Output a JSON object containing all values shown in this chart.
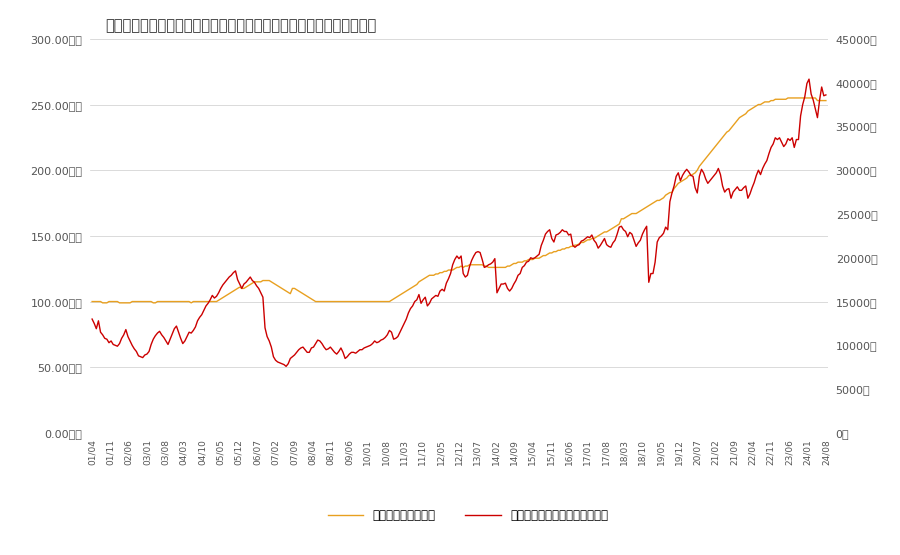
{
  "title": "首都圏中古マンションの成約坪単価と日経平均株価（月末値）の推移",
  "line1_label": "成約坪単価（万円）",
  "line2_label": "日経平均株価（月末値）（円）",
  "line1_color": "#E8A020",
  "line2_color": "#CC0000",
  "bg_color": "#FFFFFF",
  "left_ylim": [
    0,
    300
  ],
  "right_ylim": [
    0,
    45000
  ],
  "left_yticks": [
    0,
    50,
    100,
    150,
    200,
    250,
    300
  ],
  "right_yticks": [
    0,
    5000,
    10000,
    15000,
    20000,
    25000,
    30000,
    35000,
    40000,
    45000
  ],
  "left_yticklabels": [
    "0.00万円",
    "50.00万円",
    "100.00万円",
    "150.00万円",
    "200.00万円",
    "250.00万円",
    "300.00万円"
  ],
  "right_yticklabels": [
    "0円",
    "5000円",
    "10000円",
    "15000円",
    "20000円",
    "25000円",
    "30000円",
    "35000円",
    "40000円",
    "45000円"
  ],
  "xtick_labels": [
    "01/04",
    "01/11",
    "02/06",
    "03/01",
    "03/08",
    "04/03",
    "04/10",
    "05/05",
    "05/12",
    "06/07",
    "07/02",
    "07/09",
    "08/04",
    "08/11",
    "09/06",
    "10/01",
    "10/08",
    "11/03",
    "11/10",
    "12/05",
    "12/12",
    "13/07",
    "14/02",
    "14/09",
    "15/04",
    "15/11",
    "16/06",
    "17/01",
    "17/08",
    "18/03",
    "18/10",
    "19/05",
    "19/12",
    "20/07",
    "21/02",
    "21/09",
    "22/04",
    "22/11",
    "23/06",
    "24/01",
    "24/08"
  ],
  "nikkei_monthly": [
    13000,
    12500,
    11900,
    12800,
    11500,
    11200,
    10800,
    10700,
    10300,
    10500,
    10100,
    10000,
    9900,
    10200,
    10800,
    11200,
    11800,
    11000,
    10500,
    10000,
    9600,
    9300,
    8800,
    8700,
    8600,
    8900,
    9000,
    9300,
    10100,
    10700,
    11100,
    11400,
    11600,
    11200,
    10900,
    10500,
    10100,
    10700,
    11300,
    11900,
    12200,
    11500,
    10800,
    10200,
    10500,
    11000,
    11500,
    11400,
    11700,
    12100,
    12800,
    13200,
    13500,
    14000,
    14500,
    14800,
    15200,
    15700,
    15400,
    15600,
    16000,
    16500,
    16900,
    17200,
    17500,
    17800,
    18000,
    18300,
    18500,
    17500,
    17000,
    16500,
    17000,
    17200,
    17500,
    17800,
    17400,
    17200,
    16800,
    16500,
    16000,
    15500,
    12000,
    11000,
    10500,
    9800,
    8700,
    8300,
    8100,
    8000,
    7900,
    7800,
    7600,
    7900,
    8500,
    8700,
    8900,
    9200,
    9500,
    9700,
    9800,
    9500,
    9200,
    9200,
    9700,
    9800,
    10200,
    10600,
    10500,
    10200,
    9800,
    9500,
    9600,
    9800,
    9500,
    9200,
    9000,
    9300,
    9700,
    9200,
    8500,
    8700,
    9000,
    9200,
    9200,
    9100,
    9300,
    9500,
    9500,
    9700,
    9800,
    9900,
    10000,
    10200,
    10500,
    10300,
    10400,
    10600,
    10700,
    10900,
    11200,
    11700,
    11500,
    10700,
    10800,
    11000,
    11500,
    12000,
    12500,
    13000,
    13700,
    14200,
    14500,
    15000,
    15200,
    15800,
    14800,
    15200,
    15500,
    14500,
    14800,
    15300,
    15500,
    15700,
    15600,
    16200,
    16400,
    16200,
    17100,
    17600,
    18200,
    19200,
    19800,
    20200,
    19900,
    20200,
    18200,
    17800,
    18000,
    19000,
    19700,
    20200,
    20600,
    20700,
    20600,
    19800,
    18900,
    19000,
    19200,
    19300,
    19500,
    19900,
    16000,
    16500,
    17000,
    17000,
    17100,
    16500,
    16200,
    16500,
    17000,
    17400,
    18000,
    18200,
    18900,
    19100,
    19500,
    19600,
    20000,
    19900,
    20000,
    20200,
    20400,
    21400,
    22000,
    22700,
    23000,
    23200,
    22200,
    21800,
    22600,
    22700,
    22900,
    23200,
    23000,
    23000,
    22600,
    22700,
    21400,
    21200,
    21400,
    21500,
    21900,
    22000,
    22200,
    22400,
    22300,
    22600,
    22000,
    21700,
    21100,
    21400,
    21800,
    22200,
    21500,
    21300,
    21200,
    21700,
    22000,
    22700,
    23500,
    23600,
    23200,
    23000,
    22400,
    22900,
    22700,
    22000,
    21300,
    21700,
    22000,
    22700,
    23200,
    23600,
    17200,
    18200,
    18200,
    19500,
    21800,
    22300,
    22500,
    22800,
    23500,
    23200,
    26400,
    27400,
    28200,
    29300,
    29700,
    28800,
    29400,
    29800,
    30100,
    29800,
    29400,
    29300,
    28000,
    27400,
    29300,
    30100,
    29700,
    29000,
    28500,
    28800,
    29100,
    29400,
    29700,
    30200,
    29500,
    28200,
    27500,
    27800,
    27900,
    26800,
    27500,
    27800,
    28100,
    27700,
    27700,
    28000,
    28200,
    26800,
    27300,
    28000,
    28600,
    29400,
    30000,
    29500,
    30200,
    30700,
    31100,
    31900,
    32600,
    33000,
    33700,
    33500,
    33700,
    33200,
    32700,
    33000,
    33600,
    33400,
    33700,
    32600,
    33500,
    33500,
    36200,
    37500,
    38400,
    39900,
    40400,
    38700,
    38000,
    37000,
    36000,
    38000,
    39500,
    38500,
    38600
  ],
  "tsubo_monthly": [
    100,
    100,
    100,
    100,
    100,
    99,
    99,
    99,
    100,
    100,
    100,
    100,
    100,
    99,
    99,
    99,
    99,
    99,
    99,
    100,
    100,
    100,
    100,
    100,
    100,
    100,
    100,
    100,
    100,
    99,
    99,
    100,
    100,
    100,
    100,
    100,
    100,
    100,
    100,
    100,
    100,
    100,
    100,
    100,
    100,
    100,
    100,
    99,
    100,
    100,
    100,
    100,
    100,
    100,
    100,
    100,
    100,
    100,
    100,
    100,
    101,
    102,
    103,
    104,
    105,
    106,
    107,
    108,
    109,
    110,
    111,
    110,
    110,
    111,
    112,
    113,
    114,
    115,
    115,
    115,
    115,
    116,
    116,
    116,
    116,
    115,
    114,
    113,
    112,
    111,
    110,
    109,
    108,
    107,
    106,
    110,
    110,
    109,
    108,
    107,
    106,
    105,
    104,
    103,
    102,
    101,
    100,
    100,
    100,
    100,
    100,
    100,
    100,
    100,
    100,
    100,
    100,
    100,
    100,
    100,
    100,
    100,
    100,
    100,
    100,
    100,
    100,
    100,
    100,
    100,
    100,
    100,
    100,
    100,
    100,
    100,
    100,
    100,
    100,
    100,
    100,
    100,
    101,
    102,
    103,
    104,
    105,
    106,
    107,
    108,
    109,
    110,
    111,
    112,
    113,
    115,
    116,
    117,
    118,
    119,
    120,
    120,
    120,
    121,
    121,
    122,
    122,
    123,
    123,
    124,
    124,
    124,
    125,
    126,
    126,
    127,
    126,
    127,
    127,
    128,
    128,
    128,
    128,
    128,
    128,
    128,
    127,
    127,
    126,
    126,
    126,
    126,
    126,
    126,
    126,
    126,
    126,
    127,
    127,
    128,
    129,
    129,
    130,
    130,
    130,
    131,
    131,
    132,
    132,
    132,
    133,
    133,
    133,
    134,
    135,
    135,
    136,
    137,
    137,
    138,
    138,
    139,
    139,
    140,
    140,
    141,
    141,
    142,
    142,
    143,
    143,
    144,
    145,
    145,
    146,
    147,
    147,
    148,
    148,
    149,
    150,
    151,
    152,
    153,
    153,
    154,
    155,
    156,
    157,
    158,
    159,
    163,
    163,
    164,
    165,
    166,
    167,
    167,
    167,
    168,
    169,
    170,
    171,
    172,
    173,
    174,
    175,
    176,
    177,
    177,
    178,
    179,
    181,
    182,
    183,
    183,
    186,
    188,
    190,
    191,
    192,
    193,
    194,
    196,
    196,
    197,
    198,
    200,
    203,
    205,
    207,
    209,
    211,
    213,
    215,
    217,
    219,
    221,
    223,
    225,
    227,
    229,
    230,
    232,
    234,
    236,
    238,
    240,
    241,
    242,
    243,
    245,
    246,
    247,
    248,
    249,
    250,
    250,
    251,
    252,
    252,
    252,
    253,
    253,
    254,
    254,
    254,
    254,
    254,
    254,
    255,
    255,
    255,
    255,
    255,
    255,
    255,
    255,
    255,
    255,
    255,
    255,
    255,
    255,
    253,
    253,
    253,
    253,
    253
  ]
}
